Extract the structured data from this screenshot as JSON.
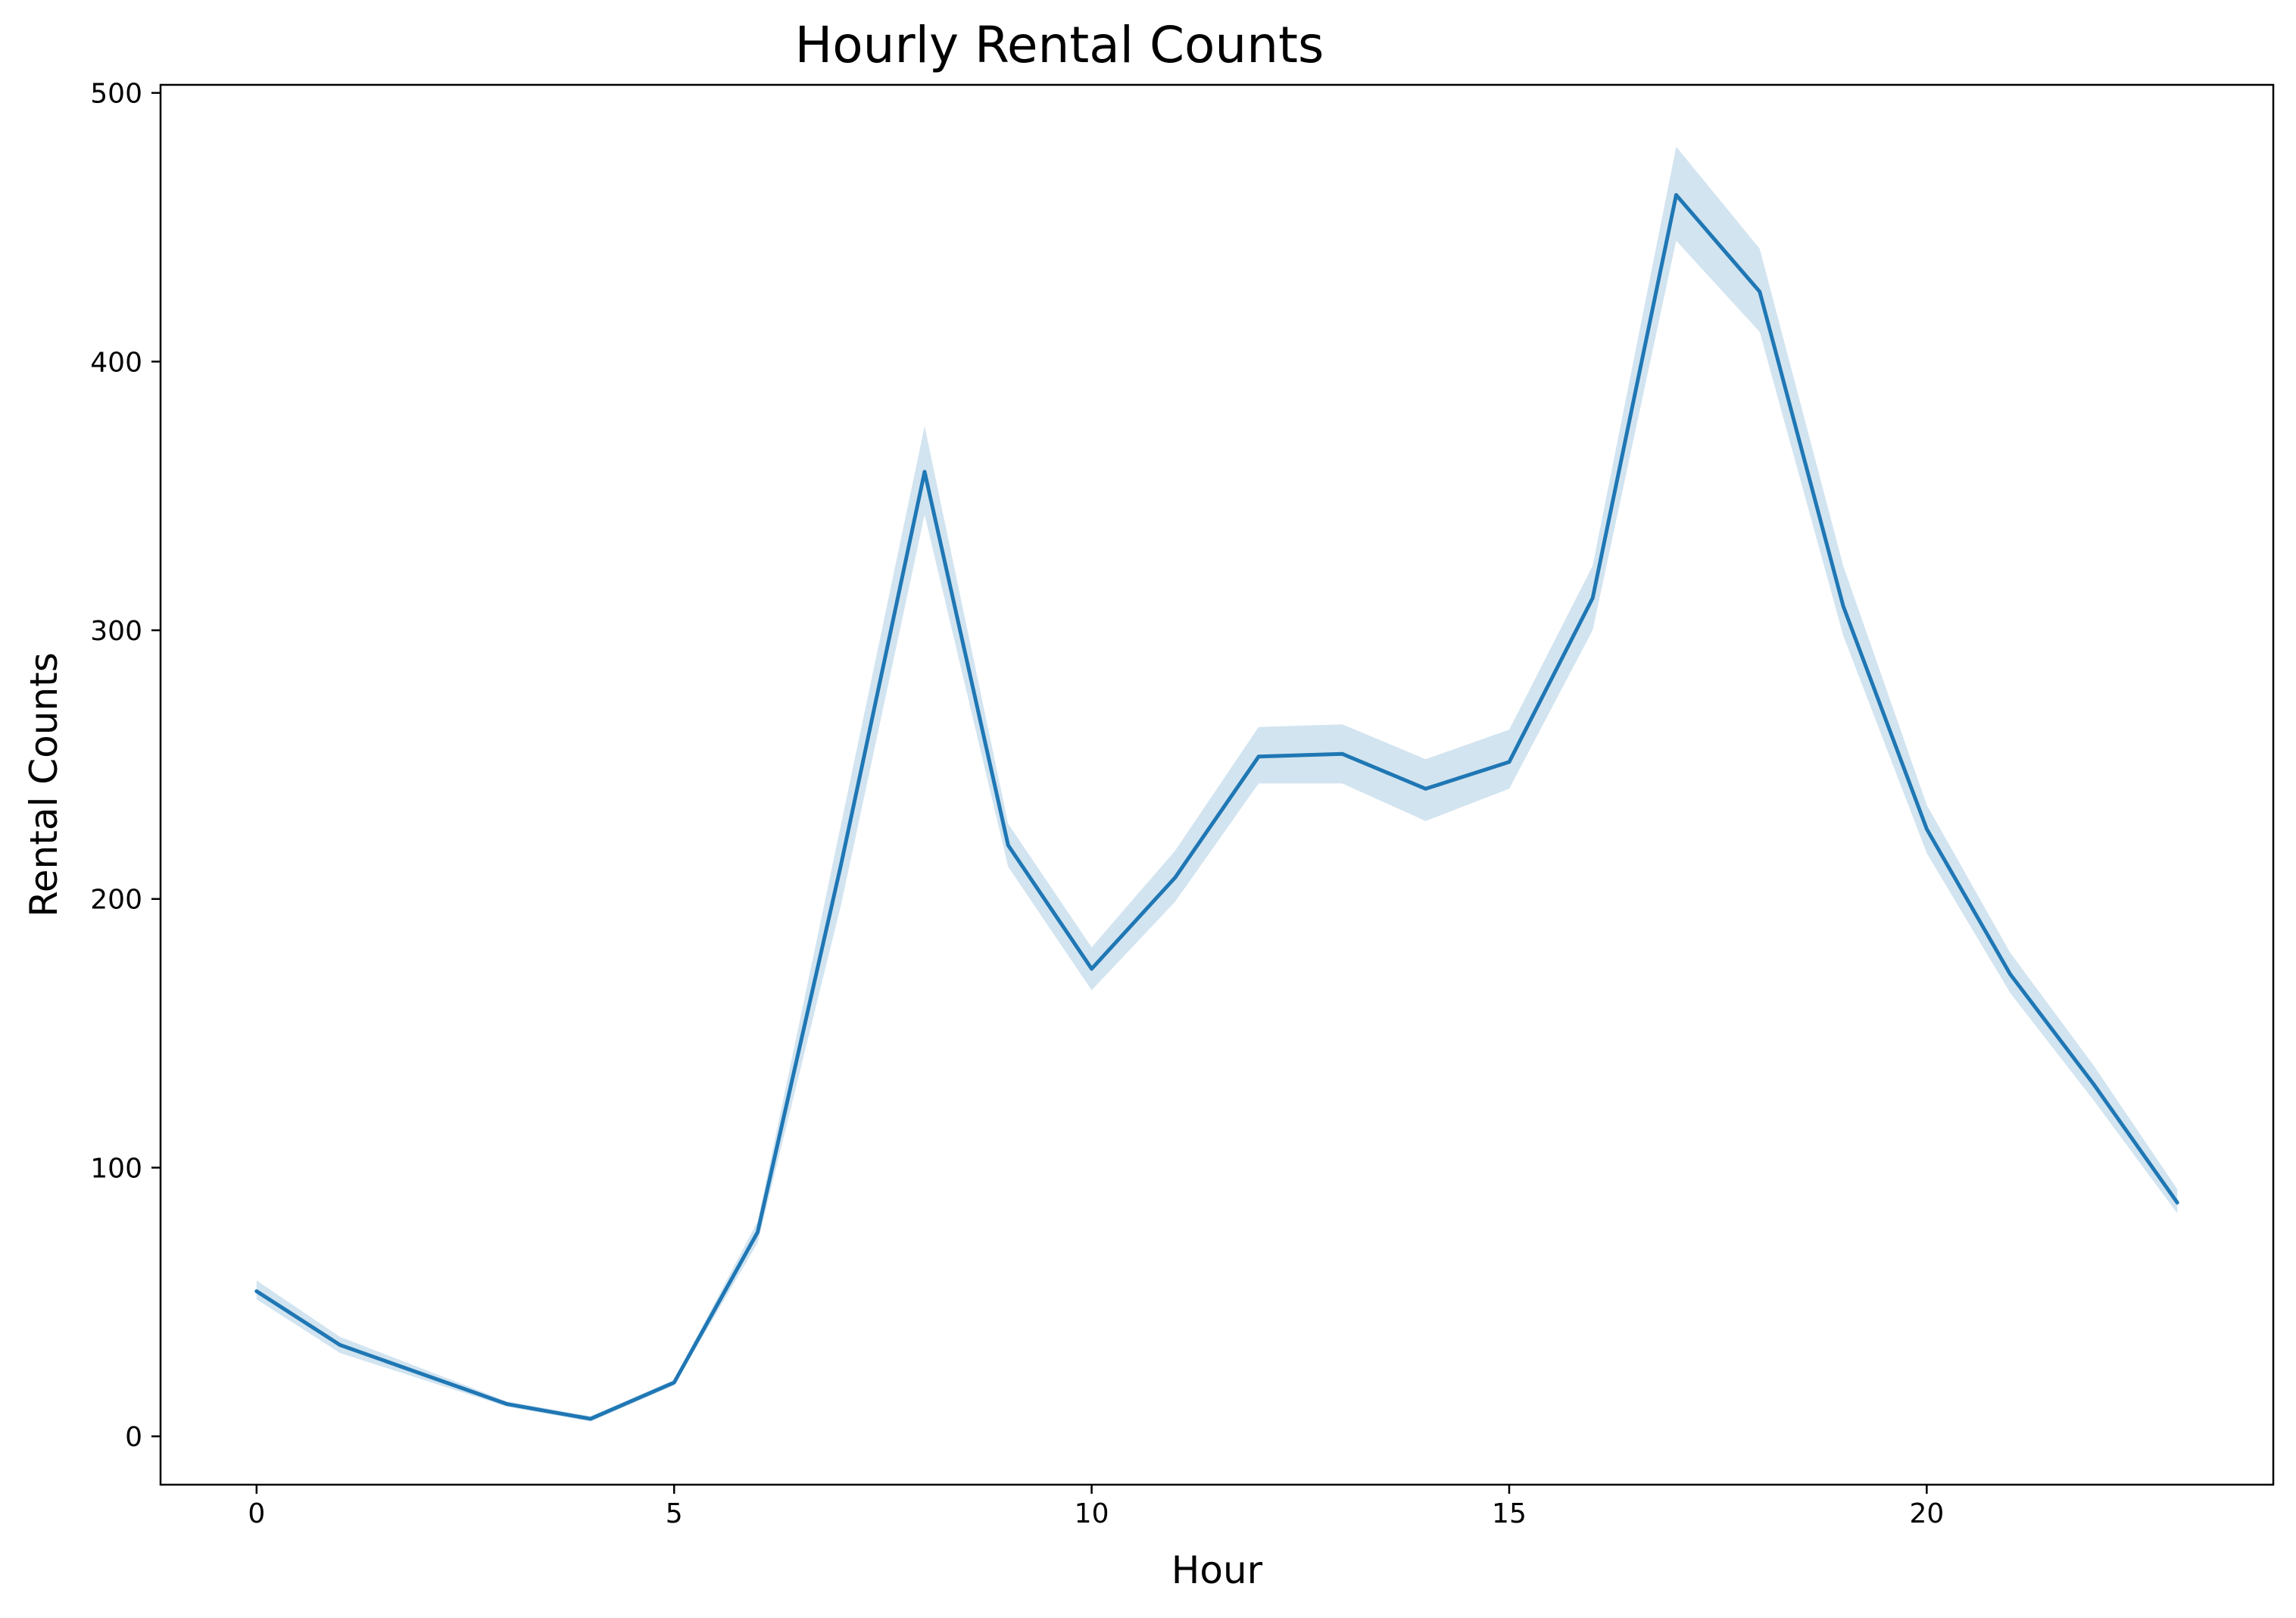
{
  "chart_data": {
    "type": "line",
    "title": "Hourly Rental Counts",
    "xlabel": "Hour",
    "ylabel": "Rental Counts",
    "xlim": [
      -1.15,
      24.15
    ],
    "ylim": [
      -18,
      503
    ],
    "xticks": [
      0,
      5,
      10,
      15,
      20
    ],
    "yticks": [
      0,
      100,
      200,
      300,
      400,
      500
    ],
    "grid": false,
    "legend": "none",
    "colors": {
      "line": "#1f77b4",
      "band": "#1f77b4"
    },
    "series": [
      {
        "x": [
          0,
          1,
          2,
          3,
          4,
          5,
          6,
          7,
          8,
          9,
          10,
          11,
          12,
          13,
          14,
          15,
          16,
          17,
          18,
          19,
          20,
          21,
          22,
          23
        ],
        "y": [
          54,
          34,
          23,
          12,
          6.5,
          20,
          76,
          213,
          359,
          220,
          174,
          208,
          253,
          254,
          241,
          251,
          312,
          462,
          426,
          309,
          226,
          172,
          131,
          87
        ],
        "ci_low": [
          51,
          31,
          21,
          11,
          5.5,
          19,
          72,
          198,
          343,
          212,
          166,
          199,
          243,
          243,
          229,
          241,
          300,
          445,
          411,
          298,
          217,
          165,
          125,
          83
        ],
        "ci_high": [
          58,
          37,
          25,
          13,
          7.5,
          21,
          80,
          228,
          376,
          228,
          182,
          218,
          264,
          265,
          252,
          263,
          324,
          480,
          442,
          324,
          235,
          180,
          138,
          92
        ]
      }
    ]
  }
}
